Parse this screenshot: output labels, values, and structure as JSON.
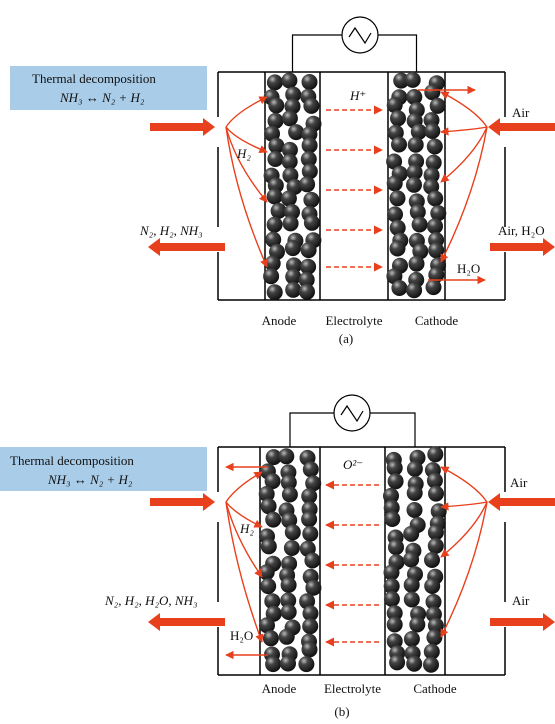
{
  "panels": [
    {
      "label": "(a)",
      "decomposition": {
        "title": "Thermal decomposition",
        "reaction": "NH₃ ↔ N₂ + H₂"
      },
      "ion": "H⁺",
      "fuel": "H₂",
      "air_in": "Air",
      "exhaust": "N₂, H₂, NH₃",
      "air_out": "Air, H₂O",
      "water": "H₂O",
      "layers": [
        "Anode",
        "Electrolyte",
        "Cathode"
      ]
    },
    {
      "label": "(b)",
      "decomposition": {
        "title": "Thermal decomposition",
        "reaction": "NH₃ ↔ N₂ + H₂"
      },
      "ion": "O²⁻",
      "fuel": "H₂",
      "air_in": "Air",
      "exhaust": "N₂, H₂, H₂O, NH₃",
      "air_out": "Air",
      "water": "H₂O",
      "layers": [
        "Anode",
        "Electrolyte",
        "Cathode"
      ]
    }
  ]
}
